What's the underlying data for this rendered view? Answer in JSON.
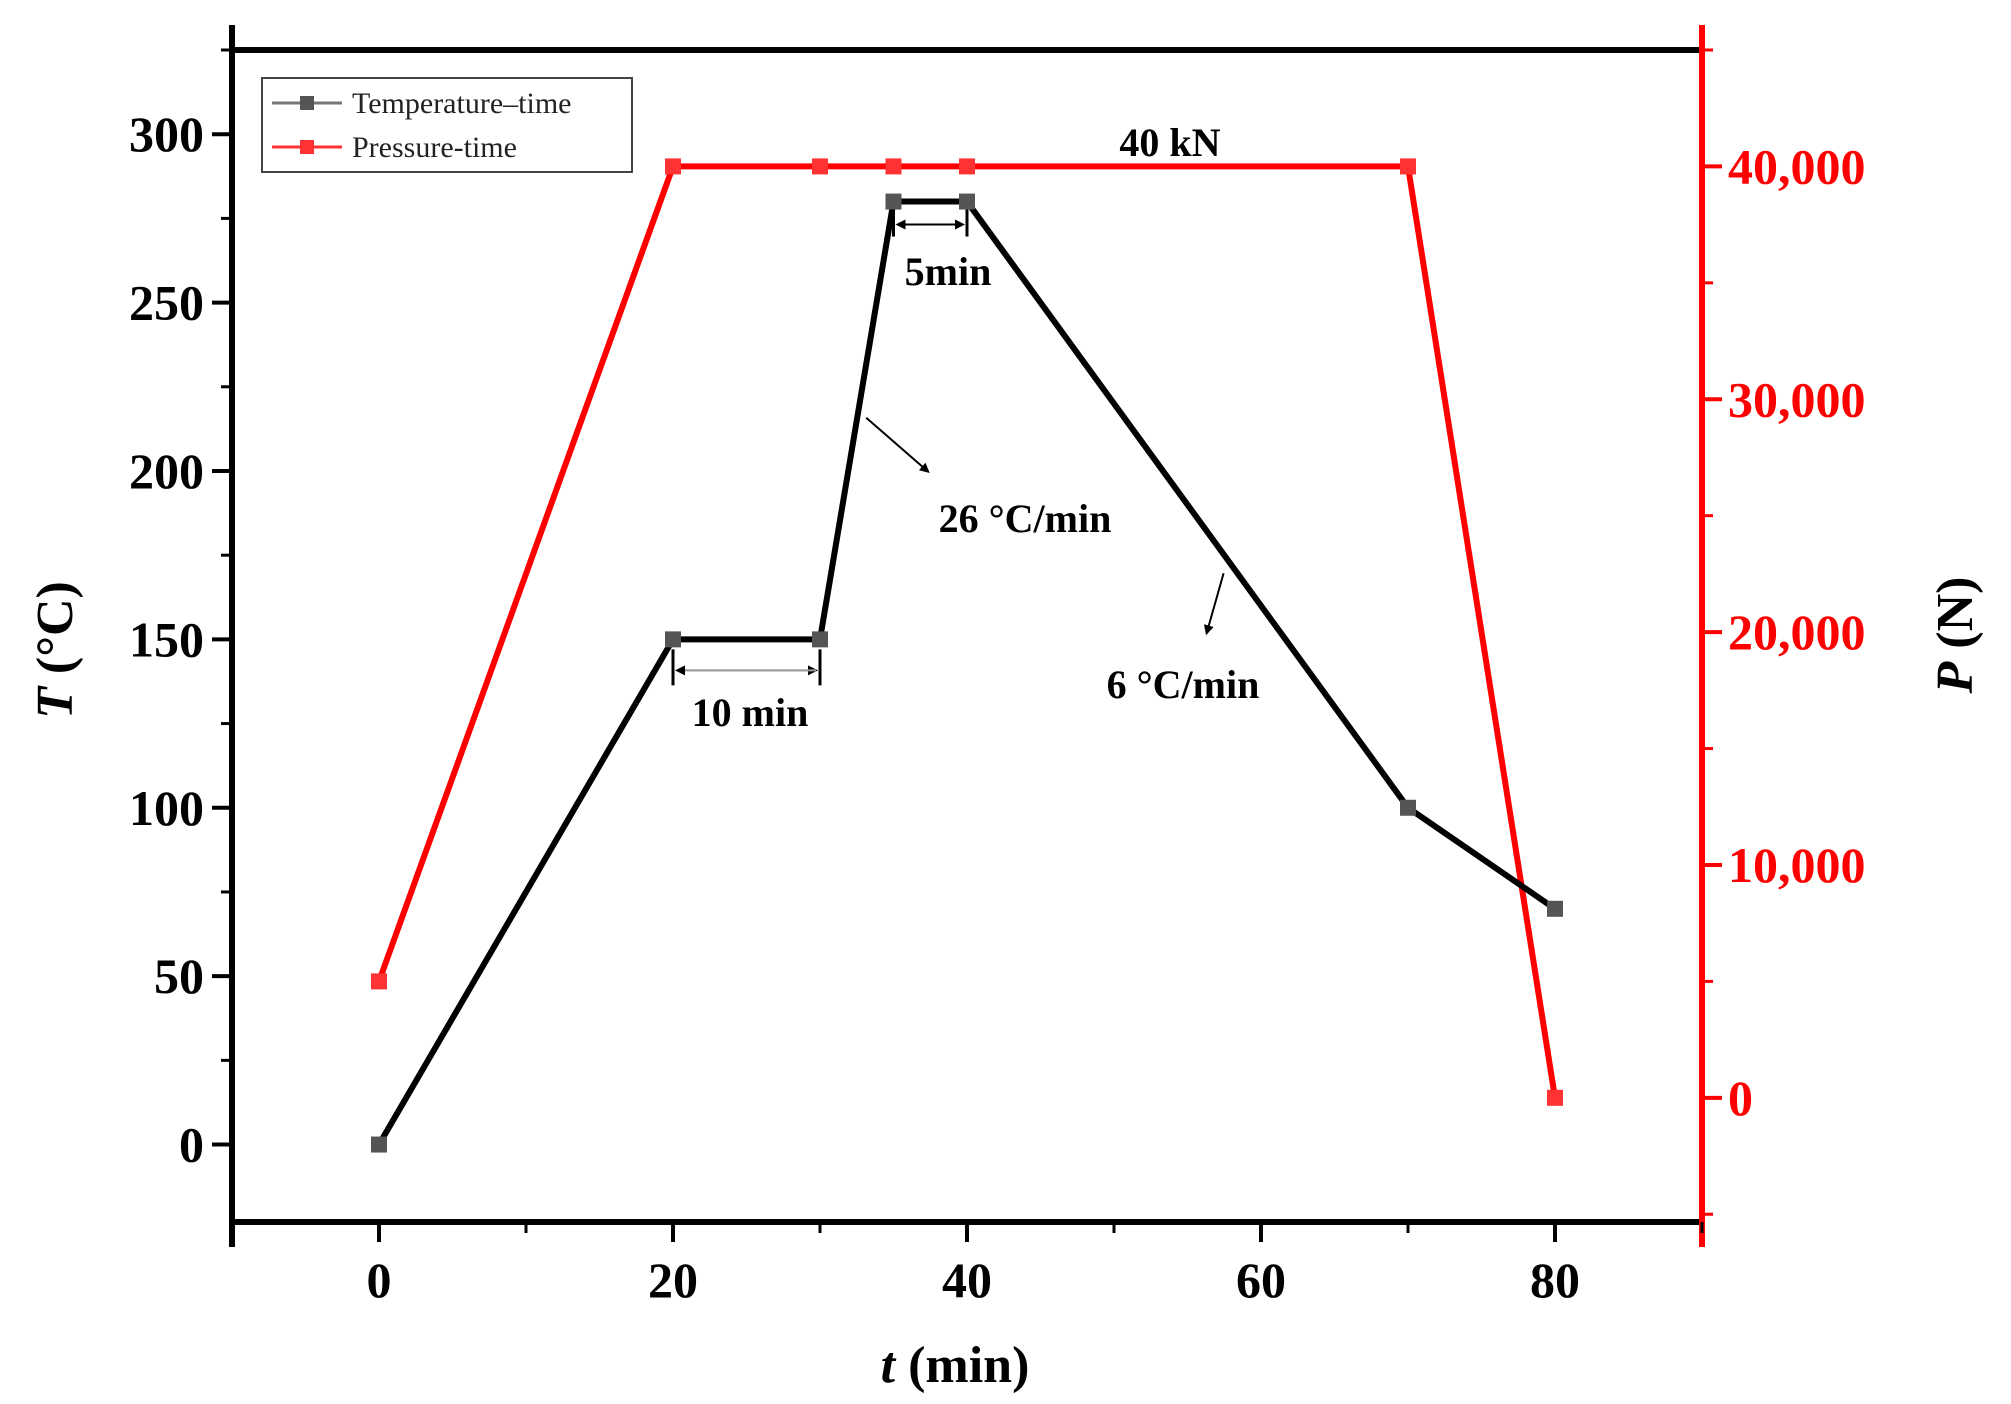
{
  "chart_data": {
    "type": "line",
    "title": "",
    "xlabel_var": "t",
    "xlabel_unit": " (min)",
    "ylabel_var": "T",
    "ylabel_unit": " (°C)",
    "y2label_var": "P",
    "y2label_unit": " (N)",
    "xlim": [
      -10,
      90
    ],
    "ylim": [
      -23,
      325
    ],
    "y2lim": [
      -5333.33,
      45000
    ],
    "xticks": [
      0,
      20,
      40,
      60,
      80
    ],
    "xtick_labels": [
      "0",
      "20",
      "40",
      "60",
      "80"
    ],
    "yticks": [
      0,
      50,
      100,
      150,
      200,
      250,
      300
    ],
    "ytick_labels": [
      "0",
      "50",
      "100",
      "150",
      "200",
      "250",
      "300"
    ],
    "y2ticks": [
      0,
      10000,
      20000,
      30000,
      40000
    ],
    "y2tick_labels": [
      "0",
      "10,000",
      "20,000",
      "30,000",
      "40,000"
    ],
    "legend_position": "top-left",
    "series": [
      {
        "name": "Temperature–time",
        "axis": "left",
        "color": "#000000",
        "marker_color": "#555555",
        "x": [
          0,
          20,
          30,
          35,
          40,
          70,
          80
        ],
        "values": [
          0,
          150,
          150,
          280,
          280,
          100,
          70
        ]
      },
      {
        "name": "Pressure-time",
        "axis": "right",
        "color": "#ff0000",
        "marker_color": "#ff3333",
        "x": [
          0,
          20,
          30,
          35,
          40,
          70,
          80
        ],
        "values": [
          5000,
          40000,
          40000,
          40000,
          40000,
          40000,
          0
        ]
      }
    ],
    "annotations": {
      "hold1": "10 min",
      "hold2": "5min",
      "rate_up": "26 °C/min",
      "rate_down": "6 °C/min",
      "pressure": "40 kN"
    },
    "colors": {
      "left_axis": "#000000",
      "right_axis": "#ff0000"
    }
  }
}
